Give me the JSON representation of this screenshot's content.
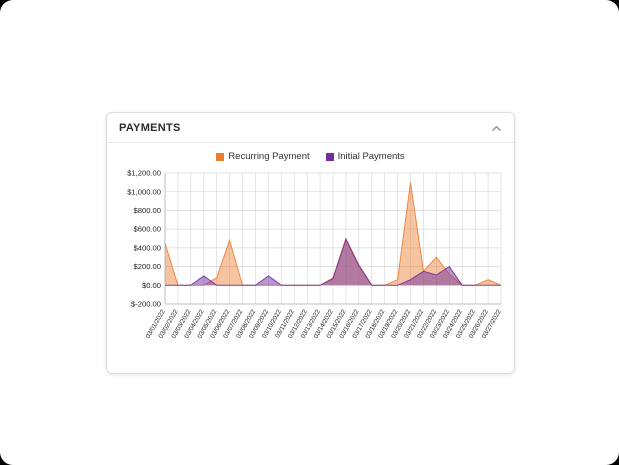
{
  "card": {
    "title": "PAYMENTS"
  },
  "chart_data": {
    "type": "area",
    "title": "PAYMENTS",
    "x": [
      "03/01/2022",
      "03/02/2022",
      "03/03/2022",
      "03/04/2022",
      "03/05/2022",
      "03/06/2022",
      "03/07/2022",
      "03/08/2022",
      "03/09/2022",
      "03/10/2022",
      "03/11/2022",
      "03/12/2022",
      "03/13/2022",
      "03/14/2022",
      "03/15/2022",
      "03/16/2022",
      "03/17/2022",
      "03/18/2022",
      "03/19/2022",
      "03/20/2022",
      "03/21/2022",
      "03/22/2022",
      "03/23/2022",
      "03/24/2022",
      "03/25/2022",
      "03/26/2022",
      "03/27/2022"
    ],
    "series": [
      {
        "name": "Recurring Payment",
        "color": "#ED7D31",
        "fill_opacity": 0.45,
        "values": [
          450,
          0,
          0,
          0,
          80,
          480,
          0,
          0,
          0,
          0,
          0,
          0,
          0,
          80,
          500,
          220,
          0,
          0,
          60,
          1100,
          150,
          300,
          120,
          0,
          0,
          60,
          0
        ]
      },
      {
        "name": "Initial Payments",
        "color": "#7030A0",
        "fill_opacity": 0.5,
        "values": [
          0,
          0,
          0,
          100,
          0,
          0,
          0,
          0,
          100,
          0,
          0,
          0,
          0,
          70,
          490,
          210,
          0,
          0,
          0,
          60,
          150,
          110,
          200,
          0,
          0,
          0,
          0
        ]
      }
    ],
    "ylim": [
      -200,
      1200
    ],
    "y_ticks": [
      {
        "value": 1200,
        "label": "$1,200.00"
      },
      {
        "value": 1000,
        "label": "$1,000.00"
      },
      {
        "value": 800,
        "label": "$800.00"
      },
      {
        "value": 600,
        "label": "$600.00"
      },
      {
        "value": 400,
        "label": "$400.00"
      },
      {
        "value": 200,
        "label": "$200.00"
      },
      {
        "value": 0,
        "label": "$0.00"
      },
      {
        "value": -200,
        "label": "$-200.00"
      }
    ],
    "grid": true,
    "legend_position": "top"
  }
}
